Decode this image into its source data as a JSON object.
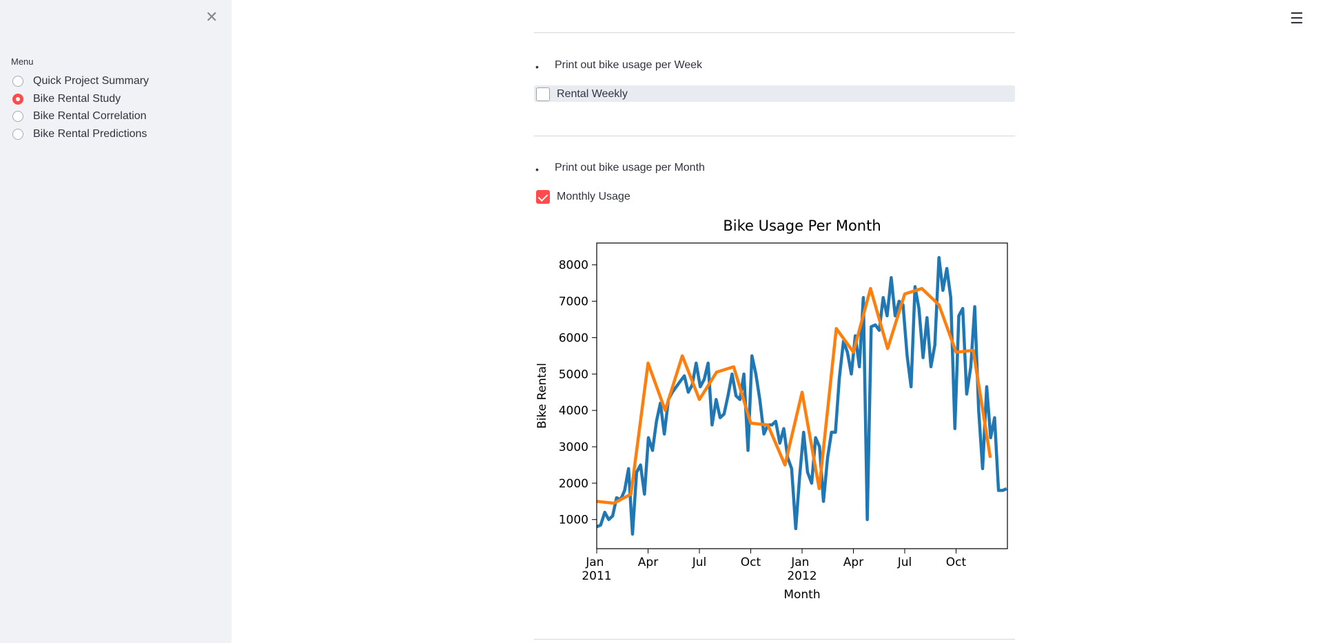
{
  "sidebar": {
    "menu_label": "Menu",
    "options": [
      "Quick Project Summary",
      "Bike Rental Study",
      "Bike Rental Correlation",
      "Bike Rental Predictions"
    ],
    "selected": 1
  },
  "main": {
    "sections": [
      {
        "bullet": "Print out bike usage per Week",
        "checkbox": "Rental Weekly",
        "checked": false
      },
      {
        "bullet": "Print out bike usage per Month",
        "checkbox": "Monthly Usage",
        "checked": true
      }
    ]
  },
  "chart_data": {
    "type": "line",
    "title": "Bike Usage Per Month",
    "x_label": "Month",
    "y_label": "Bike Rental",
    "xlim": [
      0,
      24
    ],
    "xticks": [
      {
        "value": 0,
        "label": "Jan 2011"
      },
      {
        "value": 3,
        "label": "Apr"
      },
      {
        "value": 6,
        "label": "Jul"
      },
      {
        "value": 9,
        "label": "Oct"
      },
      {
        "value": 12,
        "label": "Jan 2012"
      },
      {
        "value": 15,
        "label": "Apr"
      },
      {
        "value": 18,
        "label": "Jul"
      },
      {
        "value": 21,
        "label": "Oct"
      }
    ],
    "ylim": [
      200,
      8600
    ],
    "yticks": [
      1000,
      2000,
      3000,
      4000,
      5000,
      6000,
      7000,
      8000
    ],
    "grid": false,
    "series": [
      {
        "color": "#1f77b4",
        "x": [
          0,
          0.23,
          0.47,
          0.7,
          0.93,
          1.16,
          1.4,
          1.63,
          1.86,
          2.09,
          2.33,
          2.56,
          2.79,
          3.02,
          3.26,
          3.49,
          3.72,
          3.95,
          4.19,
          4.42,
          4.65,
          4.88,
          5.12,
          5.35,
          5.58,
          5.81,
          6.05,
          6.28,
          6.51,
          6.74,
          6.98,
          7.21,
          7.44,
          7.67,
          7.91,
          8.14,
          8.37,
          8.6,
          8.84,
          9.07,
          9.3,
          9.53,
          9.77,
          10.0,
          10.23,
          10.46,
          10.7,
          10.93,
          11.16,
          11.39,
          11.63,
          11.86,
          12.09,
          12.32,
          12.56,
          12.79,
          13.02,
          13.25,
          13.49,
          13.72,
          13.95,
          14.18,
          14.42,
          14.65,
          14.88,
          15.11,
          15.35,
          15.58,
          15.81,
          16.04,
          16.28,
          16.51,
          16.74,
          16.97,
          17.21,
          17.44,
          17.67,
          17.9,
          18.14,
          18.37,
          18.6,
          18.83,
          19.07,
          19.3,
          19.53,
          19.76,
          20.0,
          20.23,
          20.46,
          20.69,
          20.93,
          21.16,
          21.39,
          21.62,
          21.86,
          22.09,
          22.32,
          22.55,
          22.79,
          23.02,
          23.25,
          23.48,
          23.72,
          23.95
        ],
        "values": [
          800,
          850,
          1200,
          1000,
          1100,
          1600,
          1550,
          1800,
          2400,
          600,
          2300,
          2500,
          1700,
          3250,
          2900,
          3700,
          4200,
          3350,
          4300,
          4500,
          4650,
          4800,
          4950,
          4500,
          4700,
          5300,
          4650,
          4850,
          5300,
          3600,
          4300,
          3800,
          3900,
          4400,
          5000,
          4400,
          4300,
          5000,
          2900,
          5500,
          5000,
          4300,
          3350,
          3600,
          3600,
          3700,
          3100,
          3500,
          2700,
          2400,
          750,
          2200,
          3400,
          2300,
          2000,
          3250,
          3000,
          1500,
          2700,
          3400,
          3400,
          4900,
          5900,
          5600,
          5000,
          6050,
          5200,
          7100,
          1000,
          6300,
          6350,
          6200,
          7100,
          6600,
          7650,
          6600,
          7000,
          6900,
          5500,
          4650,
          7400,
          6800,
          5450,
          6550,
          5200,
          5800,
          8200,
          7300,
          7900,
          7100,
          3500,
          6600,
          6800,
          4450,
          5200,
          6850,
          4000,
          2400,
          4650,
          3250,
          3800,
          1800,
          1800,
          1850
        ]
      },
      {
        "color": "#ff7f0e",
        "x": [
          0,
          1,
          2,
          3,
          4,
          5,
          6,
          7,
          8,
          9,
          10,
          11,
          12,
          13,
          14,
          15,
          16,
          17,
          18,
          19,
          20,
          21,
          22,
          23
        ],
        "values": [
          1500,
          1450,
          1700,
          5300,
          4000,
          5500,
          4300,
          5050,
          5200,
          3650,
          3600,
          2500,
          4500,
          1850,
          6250,
          5600,
          7350,
          5700,
          7200,
          7350,
          6900,
          5600,
          5650,
          2700
        ]
      }
    ]
  }
}
